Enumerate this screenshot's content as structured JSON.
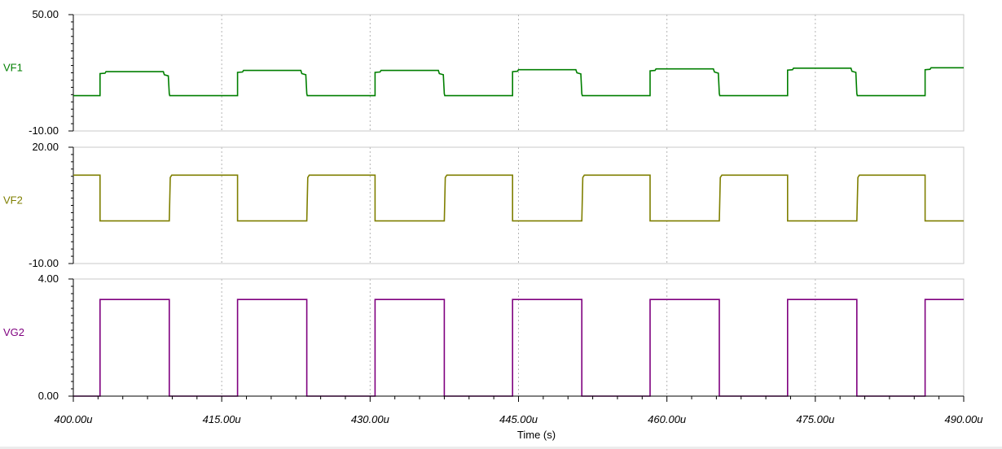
{
  "chart_data": {
    "type": "line",
    "x_unit": "s",
    "xlabel": "Time (s)",
    "xlim": [
      400,
      490
    ],
    "x_tick_values": [
      400,
      415,
      430,
      445,
      460,
      475,
      490
    ],
    "x_tick_labels": [
      "400.00u",
      "415.00u",
      "430.00u",
      "445.00u",
      "460.00u",
      "475.00u",
      "490.00u"
    ],
    "grid": "vertical dashed at x ticks",
    "panels": [
      {
        "name": "VF1",
        "color": "#007f00",
        "ylim": [
          -10,
          50
        ],
        "y_tick_labels": [
          "50.00",
          "-10.00"
        ],
        "period": 13.9,
        "first_rise": 402.7,
        "high_duration": 7.0,
        "low_level": 8.2,
        "high_levels": [
          20.6,
          21.2,
          21.2,
          21.6,
          22.0,
          22.4,
          22.6
        ],
        "x_end": 490
      },
      {
        "name": "VF2",
        "color": "#7f7f00",
        "ylim": [
          -10,
          20
        ],
        "y_tick_labels": [
          "20.00",
          "-10.00"
        ],
        "period": 13.9,
        "first_fall": 402.7,
        "low_duration": 7.0,
        "high_level": 12.8,
        "low_level": 1.0,
        "x_end": 490
      },
      {
        "name": "VG2",
        "color": "#7f007f",
        "ylim": [
          0,
          4
        ],
        "y_tick_labels": [
          "4.00",
          "0.00"
        ],
        "period": 13.9,
        "first_rise": 402.7,
        "high_duration": 7.0,
        "high_level": 3.3,
        "low_level": 0,
        "x_end": 490
      }
    ]
  }
}
